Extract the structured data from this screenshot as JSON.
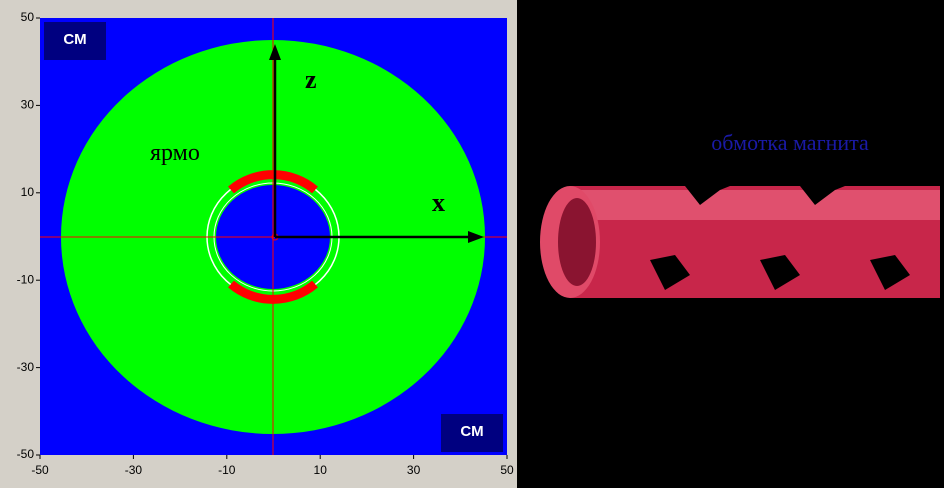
{
  "plot": {
    "xlim": [
      -50,
      50
    ],
    "ylim": [
      -50,
      50
    ],
    "xticks": [
      -50,
      -30,
      -10,
      10,
      30,
      50
    ],
    "yticks": [
      -50,
      -30,
      -10,
      10,
      30,
      50
    ],
    "unit_top": "CM",
    "unit_bottom": "CM",
    "axis_z": "z",
    "axis_x": "x",
    "region_label": "ярмо"
  },
  "caption": "обмотка магнита"
}
